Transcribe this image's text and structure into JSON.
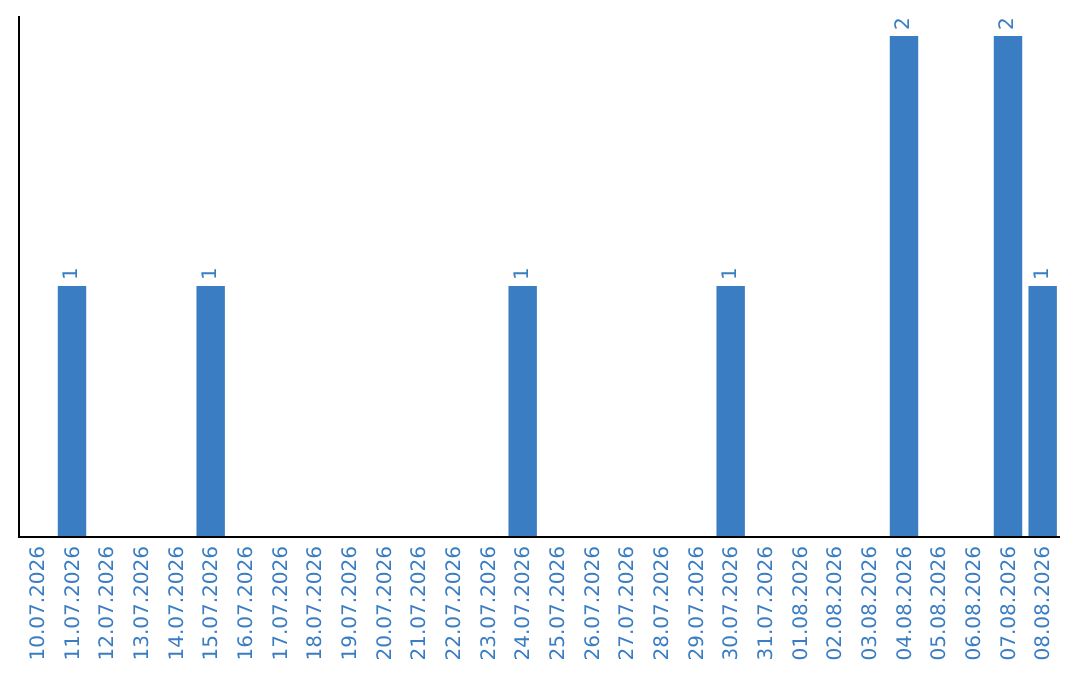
{
  "chart_data": {
    "type": "bar",
    "categories": [
      "10.07.2026",
      "11.07.2026",
      "12.07.2026",
      "13.07.2026",
      "14.07.2026",
      "15.07.2026",
      "16.07.2026",
      "17.07.2026",
      "18.07.2026",
      "19.07.2026",
      "20.07.2026",
      "21.07.2026",
      "22.07.2026",
      "23.07.2026",
      "24.07.2026",
      "25.07.2026",
      "26.07.2026",
      "27.07.2026",
      "28.07.2026",
      "29.07.2026",
      "30.07.2026",
      "31.07.2026",
      "01.08.2026",
      "02.08.2026",
      "03.08.2026",
      "04.08.2026",
      "05.08.2026",
      "06.08.2026",
      "07.08.2026",
      "08.08.2026"
    ],
    "values": [
      0,
      1,
      0,
      0,
      0,
      1,
      0,
      0,
      0,
      0,
      0,
      0,
      0,
      0,
      1,
      0,
      0,
      0,
      0,
      0,
      1,
      0,
      0,
      0,
      0,
      2,
      0,
      0,
      2,
      1
    ],
    "value_labels": [
      null,
      "1",
      null,
      null,
      null,
      "1",
      null,
      null,
      null,
      null,
      null,
      null,
      null,
      null,
      "1",
      null,
      null,
      null,
      null,
      null,
      "1",
      null,
      null,
      null,
      null,
      "2",
      null,
      null,
      "2",
      "1"
    ],
    "color": "#3a7dc2",
    "ylim": [
      0,
      2.08
    ],
    "tick_labels": "x"
  }
}
